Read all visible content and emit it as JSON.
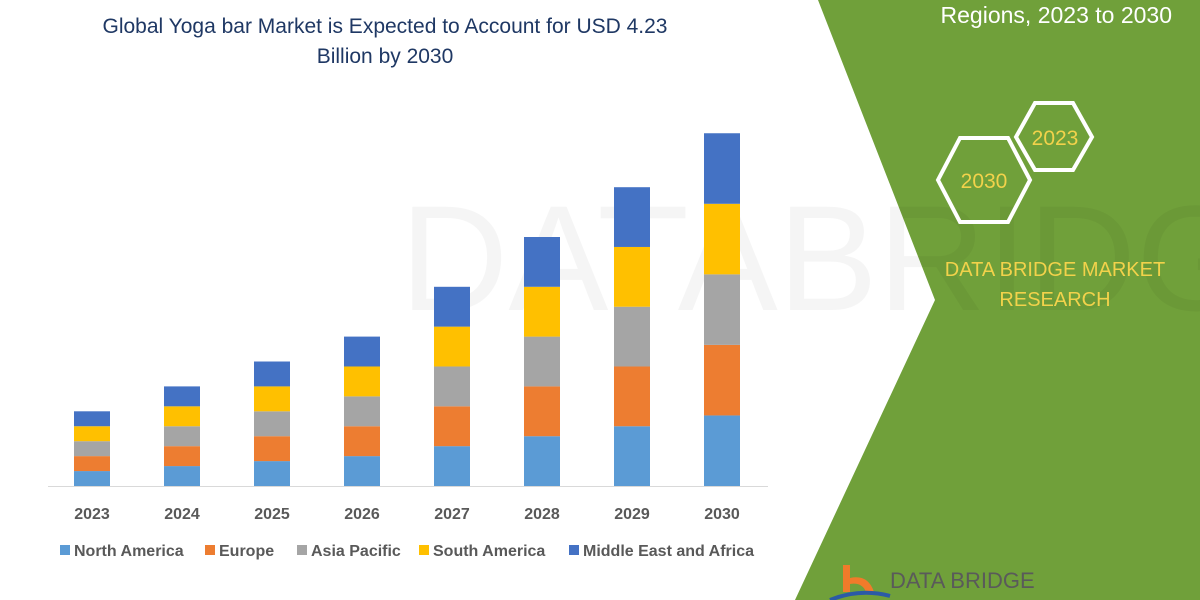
{
  "header": {
    "title_line1": "Global Yoga bar Market is Expected to Account for USD 4.23",
    "title_line2": "Billion by 2030",
    "right_title": "Regions, 2023 to 2030"
  },
  "badges": {
    "hex1": "2030",
    "hex2": "2023"
  },
  "brand": {
    "line1": "DATA BRIDGE MARKET",
    "line2": "RESEARCH",
    "logo_text": "DATA BRIDGE"
  },
  "colors": {
    "panel": "#70a03a",
    "title": "#1f3864",
    "badge_text": "#f2d24b"
  },
  "chart_data": {
    "type": "bar",
    "stacked": true,
    "categories": [
      "2023",
      "2024",
      "2025",
      "2026",
      "2027",
      "2028",
      "2029",
      "2030"
    ],
    "series": [
      {
        "name": "North America",
        "color": "#5b9bd5",
        "values": [
          0.18,
          0.24,
          0.3,
          0.36,
          0.48,
          0.6,
          0.72,
          0.85
        ]
      },
      {
        "name": "Europe",
        "color": "#ed7d31",
        "values": [
          0.18,
          0.24,
          0.3,
          0.36,
          0.48,
          0.6,
          0.72,
          0.85
        ]
      },
      {
        "name": "Asia Pacific",
        "color": "#a5a5a5",
        "values": [
          0.18,
          0.24,
          0.3,
          0.36,
          0.48,
          0.6,
          0.72,
          0.85
        ]
      },
      {
        "name": "South America",
        "color": "#ffc000",
        "values": [
          0.18,
          0.24,
          0.3,
          0.36,
          0.48,
          0.6,
          0.72,
          0.85
        ]
      },
      {
        "name": "Middle East and Africa",
        "color": "#4472c4",
        "values": [
          0.18,
          0.24,
          0.3,
          0.36,
          0.48,
          0.6,
          0.72,
          0.85
        ]
      }
    ],
    "legend": "bottom",
    "grid": false
  }
}
